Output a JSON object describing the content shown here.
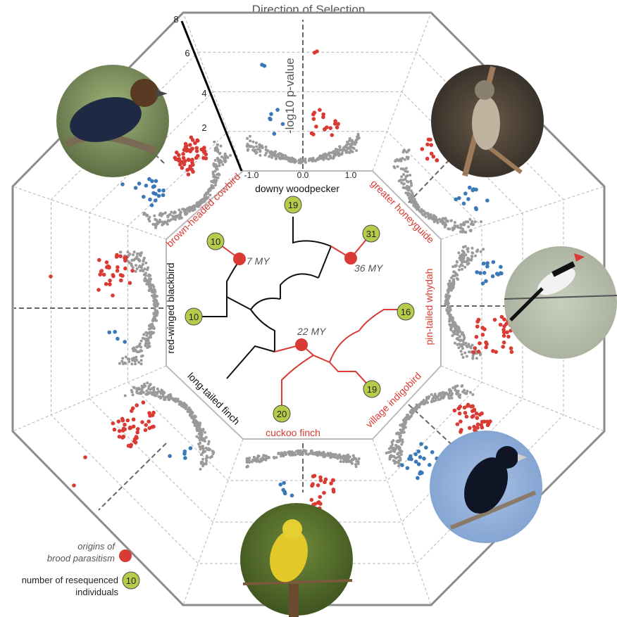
{
  "title": "Direction of Selection",
  "axis": {
    "ylabel": "-log10  p-value",
    "y_ticks": [
      "2",
      "4",
      "6",
      "8"
    ],
    "x_ticks": [
      "-1.0",
      "0.0",
      "1.0"
    ]
  },
  "species": [
    {
      "name": "downy woodpecker",
      "parasitic": false,
      "n": "19"
    },
    {
      "name": "greater honeyguide",
      "parasitic": true,
      "n": "31"
    },
    {
      "name": "pin-tailed whydah",
      "parasitic": true,
      "n": "16"
    },
    {
      "name": "village indigobird",
      "parasitic": true,
      "n": "19"
    },
    {
      "name": "cuckoo finch",
      "parasitic": true,
      "n": "20"
    },
    {
      "name": "long-tailed finch",
      "parasitic": false,
      "n": ""
    },
    {
      "name": "red-winged blackbird",
      "parasitic": false,
      "n": "10"
    },
    {
      "name": "brown-headed cowbird",
      "parasitic": true,
      "n": "10"
    }
  ],
  "origins": [
    {
      "label": "7 MY"
    },
    {
      "label": "36 MY"
    },
    {
      "label": "22 MY"
    }
  ],
  "legend": {
    "origins": "origins of brood parasitism",
    "origins_line1": "origins of",
    "origins_line2": "brood parasitism",
    "resequenced_line1": "number of resequenced",
    "resequenced_line2": "individuals",
    "example_n": "10"
  },
  "colors": {
    "parasitic": "#d93a33",
    "nonparasitic": "#111111",
    "neutral_points": "#9a9a9a",
    "blue_points": "#3b78b8",
    "node_fill": "#b5cc4a",
    "frame": "#8c8c8c"
  }
}
